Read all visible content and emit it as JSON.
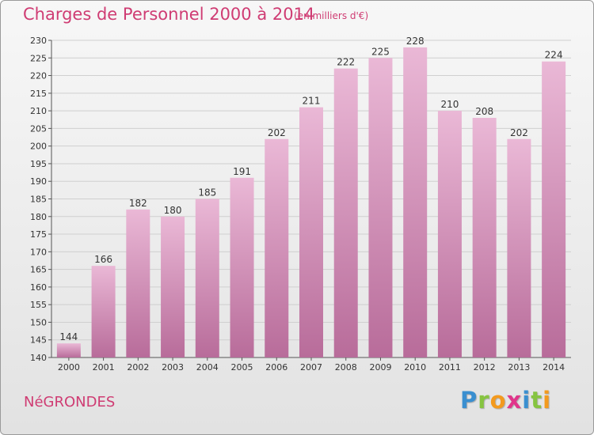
{
  "header": {
    "title": "Charges de Personnel 2000 à 2014",
    "subtitle": "(en milliers d'€)"
  },
  "footer": {
    "commune": "NéGRONDES",
    "logo_text": "Proxiti"
  },
  "colors": {
    "title": "#cf3c73",
    "bar_top": "#eab8d6",
    "bar_bottom": "#b86c9a",
    "grid": "#cfcfcf"
  },
  "chart_data": {
    "type": "bar",
    "title": "Charges de Personnel 2000 à 2014",
    "subtitle": "(en milliers d'€)",
    "xlabel": "",
    "ylabel": "",
    "categories": [
      "2000",
      "2001",
      "2002",
      "2003",
      "2004",
      "2005",
      "2006",
      "2007",
      "2008",
      "2009",
      "2010",
      "2011",
      "2012",
      "2013",
      "2014"
    ],
    "values": [
      144,
      166,
      182,
      180,
      185,
      191,
      202,
      211,
      222,
      225,
      228,
      210,
      208,
      202,
      224
    ],
    "ylim": [
      140,
      230
    ],
    "yticks": [
      140,
      145,
      150,
      155,
      160,
      165,
      170,
      175,
      180,
      185,
      190,
      195,
      200,
      205,
      210,
      215,
      220,
      225,
      230
    ],
    "grid": true,
    "data_labels": true
  }
}
